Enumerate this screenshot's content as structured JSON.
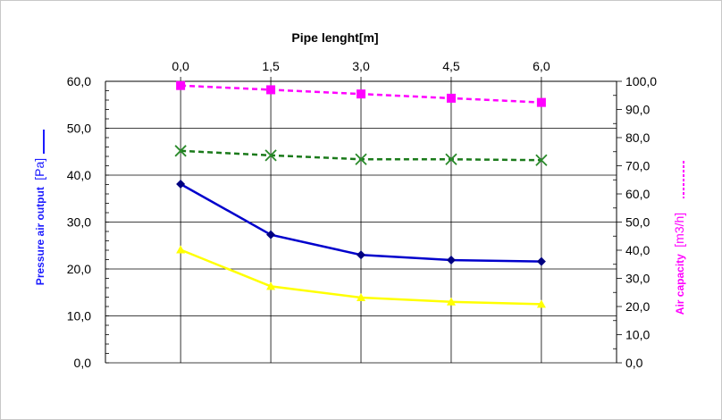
{
  "chart_data": {
    "type": "line",
    "xlabel": "Pipe lenght[m]",
    "ylabel_left": {
      "text": "Pressure air output",
      "unit": "[Pa]"
    },
    "ylabel_right": {
      "text": "Air capacity",
      "unit": "[m3/h]"
    },
    "x_ticks": [
      "0,0",
      "1,5",
      "3,0",
      "4,5",
      "6,0"
    ],
    "x": [
      0,
      1.5,
      3.0,
      4.5,
      6.0
    ],
    "xlim": [
      -1.25,
      7.25
    ],
    "y_left_ticks": [
      "0,0",
      "10,0",
      "20,0",
      "30,0",
      "40,0",
      "50,0",
      "60,0"
    ],
    "y_left_lim": [
      0,
      60
    ],
    "y_right_ticks": [
      "0,0",
      "10,0",
      "20,0",
      "30,0",
      "40,0",
      "50,0",
      "60,0",
      "70,0",
      "80,0",
      "90,0",
      "100,0"
    ],
    "y_right_lim": [
      0,
      100
    ],
    "grid": true,
    "series": [
      {
        "axis": "left",
        "color": "#0000cc",
        "line": "solid",
        "marker": "diamond",
        "markerColor": "#000080",
        "values": [
          38.1,
          27.3,
          23.0,
          21.9,
          21.6
        ]
      },
      {
        "axis": "left",
        "color": "#ffff00",
        "line": "solid",
        "marker": "triangle",
        "markerColor": "#ffff00",
        "values": [
          24.1,
          16.3,
          13.9,
          13.0,
          12.5
        ]
      },
      {
        "axis": "right",
        "color": "#ff00ff",
        "line": "dashed",
        "marker": "square",
        "markerColor": "#ff00ff",
        "values": [
          98.5,
          97.0,
          95.5,
          94.0,
          92.5
        ]
      },
      {
        "axis": "right",
        "color": "#1a7a1a",
        "line": "dashed",
        "marker": "x",
        "markerColor": "#2a8a2a",
        "values": [
          75.3,
          73.7,
          72.3,
          72.3,
          72.0
        ]
      }
    ]
  }
}
